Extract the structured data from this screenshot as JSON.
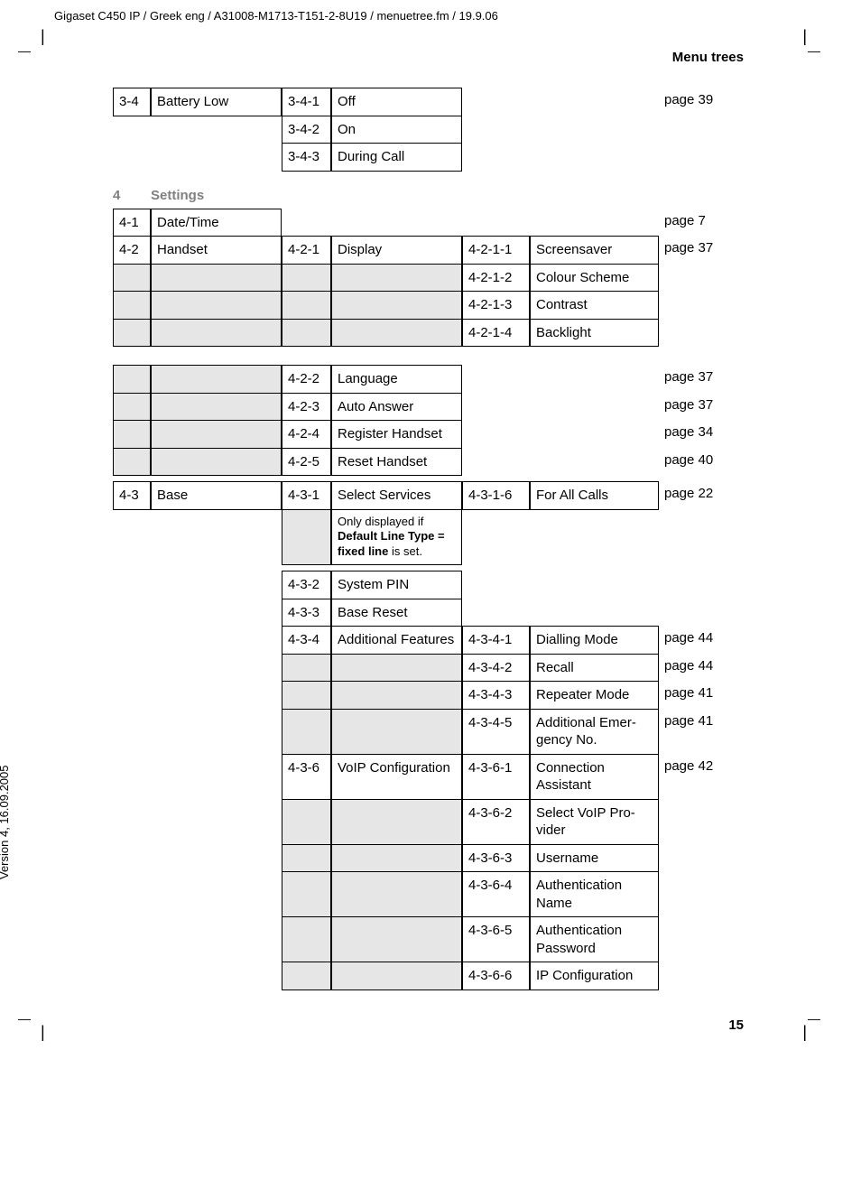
{
  "doc_header": "Gigaset C450 IP / Greek eng / A31008-M1713-T151-2-8U19 / menuetree.fm / 19.9.06",
  "section_title": "Menu trees",
  "version_text": "Version 4, 16.09.2005",
  "page_number": "15",
  "block1": {
    "r1": {
      "n1": "3-4",
      "t1": "Battery Low",
      "n2": "3-4-1",
      "t2": "Off",
      "page": "page 39"
    },
    "r2": {
      "n2": "3-4-2",
      "t2": "On"
    },
    "r3": {
      "n2": "3-4-3",
      "t2": "During Call"
    }
  },
  "section4": {
    "num": "4",
    "label": "Settings"
  },
  "b2": {
    "r1": {
      "n1": "4-1",
      "t1": "Date/Time",
      "page": "page 7"
    },
    "r2": {
      "n1": "4-2",
      "t1": "Handset",
      "n2": "4-2-1",
      "t2": "Display",
      "n3": "4-2-1-1",
      "t3": "Screensaver",
      "page": "page 37"
    },
    "r3": {
      "n3": "4-2-1-2",
      "t3": "Colour Scheme"
    },
    "r4": {
      "n3": "4-2-1-3",
      "t3": "Contrast"
    },
    "r5": {
      "n3": "4-2-1-4",
      "t3": "Backlight"
    },
    "r6": {
      "n2": "4-2-2",
      "t2": "Language",
      "page": "page 37"
    },
    "r7": {
      "n2": "4-2-3",
      "t2": "Auto Answer",
      "page": "page 37"
    },
    "r8": {
      "n2": "4-2-4",
      "t2": "Register Handset",
      "page": "page 34"
    },
    "r9": {
      "n2": "4-2-5",
      "t2": "Reset Handset",
      "page": "page 40"
    },
    "r10": {
      "n1": "4-3",
      "t1": "Base",
      "n2": "4-3-1",
      "t2": "Select Services",
      "n3": "4-3-1-6",
      "t3": "For All Calls",
      "page": "page 22"
    },
    "r10note_a": "Only displayed if ",
    "r10note_b": "Default Line Type = fixed line",
    "r10note_c": " is set.",
    "r11": {
      "n2": "4-3-2",
      "t2": "System PIN"
    },
    "r12": {
      "n2": "4-3-3",
      "t2": "Base Reset"
    },
    "r13": {
      "n2": "4-3-4",
      "t2": "Additional Fea­tures",
      "n3": "4-3-4-1",
      "t3": "Dialling Mode",
      "page": "page 44"
    },
    "r14": {
      "n3": "4-3-4-2",
      "t3": "Recall",
      "page": "page 44"
    },
    "r15": {
      "n3": "4-3-4-3",
      "t3": "Repeater Mode",
      "page": "page 41"
    },
    "r16": {
      "n3": "4-3-4-5",
      "t3": "Additional Emer­gency No.",
      "page": "page 41"
    },
    "r17": {
      "n2": "4-3-6",
      "t2": "VoIP Configura­tion",
      "n3": "4-3-6-1",
      "t3": "Connection Assistant",
      "page": "page 42"
    },
    "r18": {
      "n3": "4-3-6-2",
      "t3": "Select VoIP Pro­vider"
    },
    "r19": {
      "n3": "4-3-6-3",
      "t3": "Username"
    },
    "r20": {
      "n3": "4-3-6-4",
      "t3": "Authentication Name"
    },
    "r21": {
      "n3": "4-3-6-5",
      "t3": "Authentication Password"
    },
    "r22": {
      "n3": "4-3-6-6",
      "t3": "IP Configuration"
    }
  }
}
